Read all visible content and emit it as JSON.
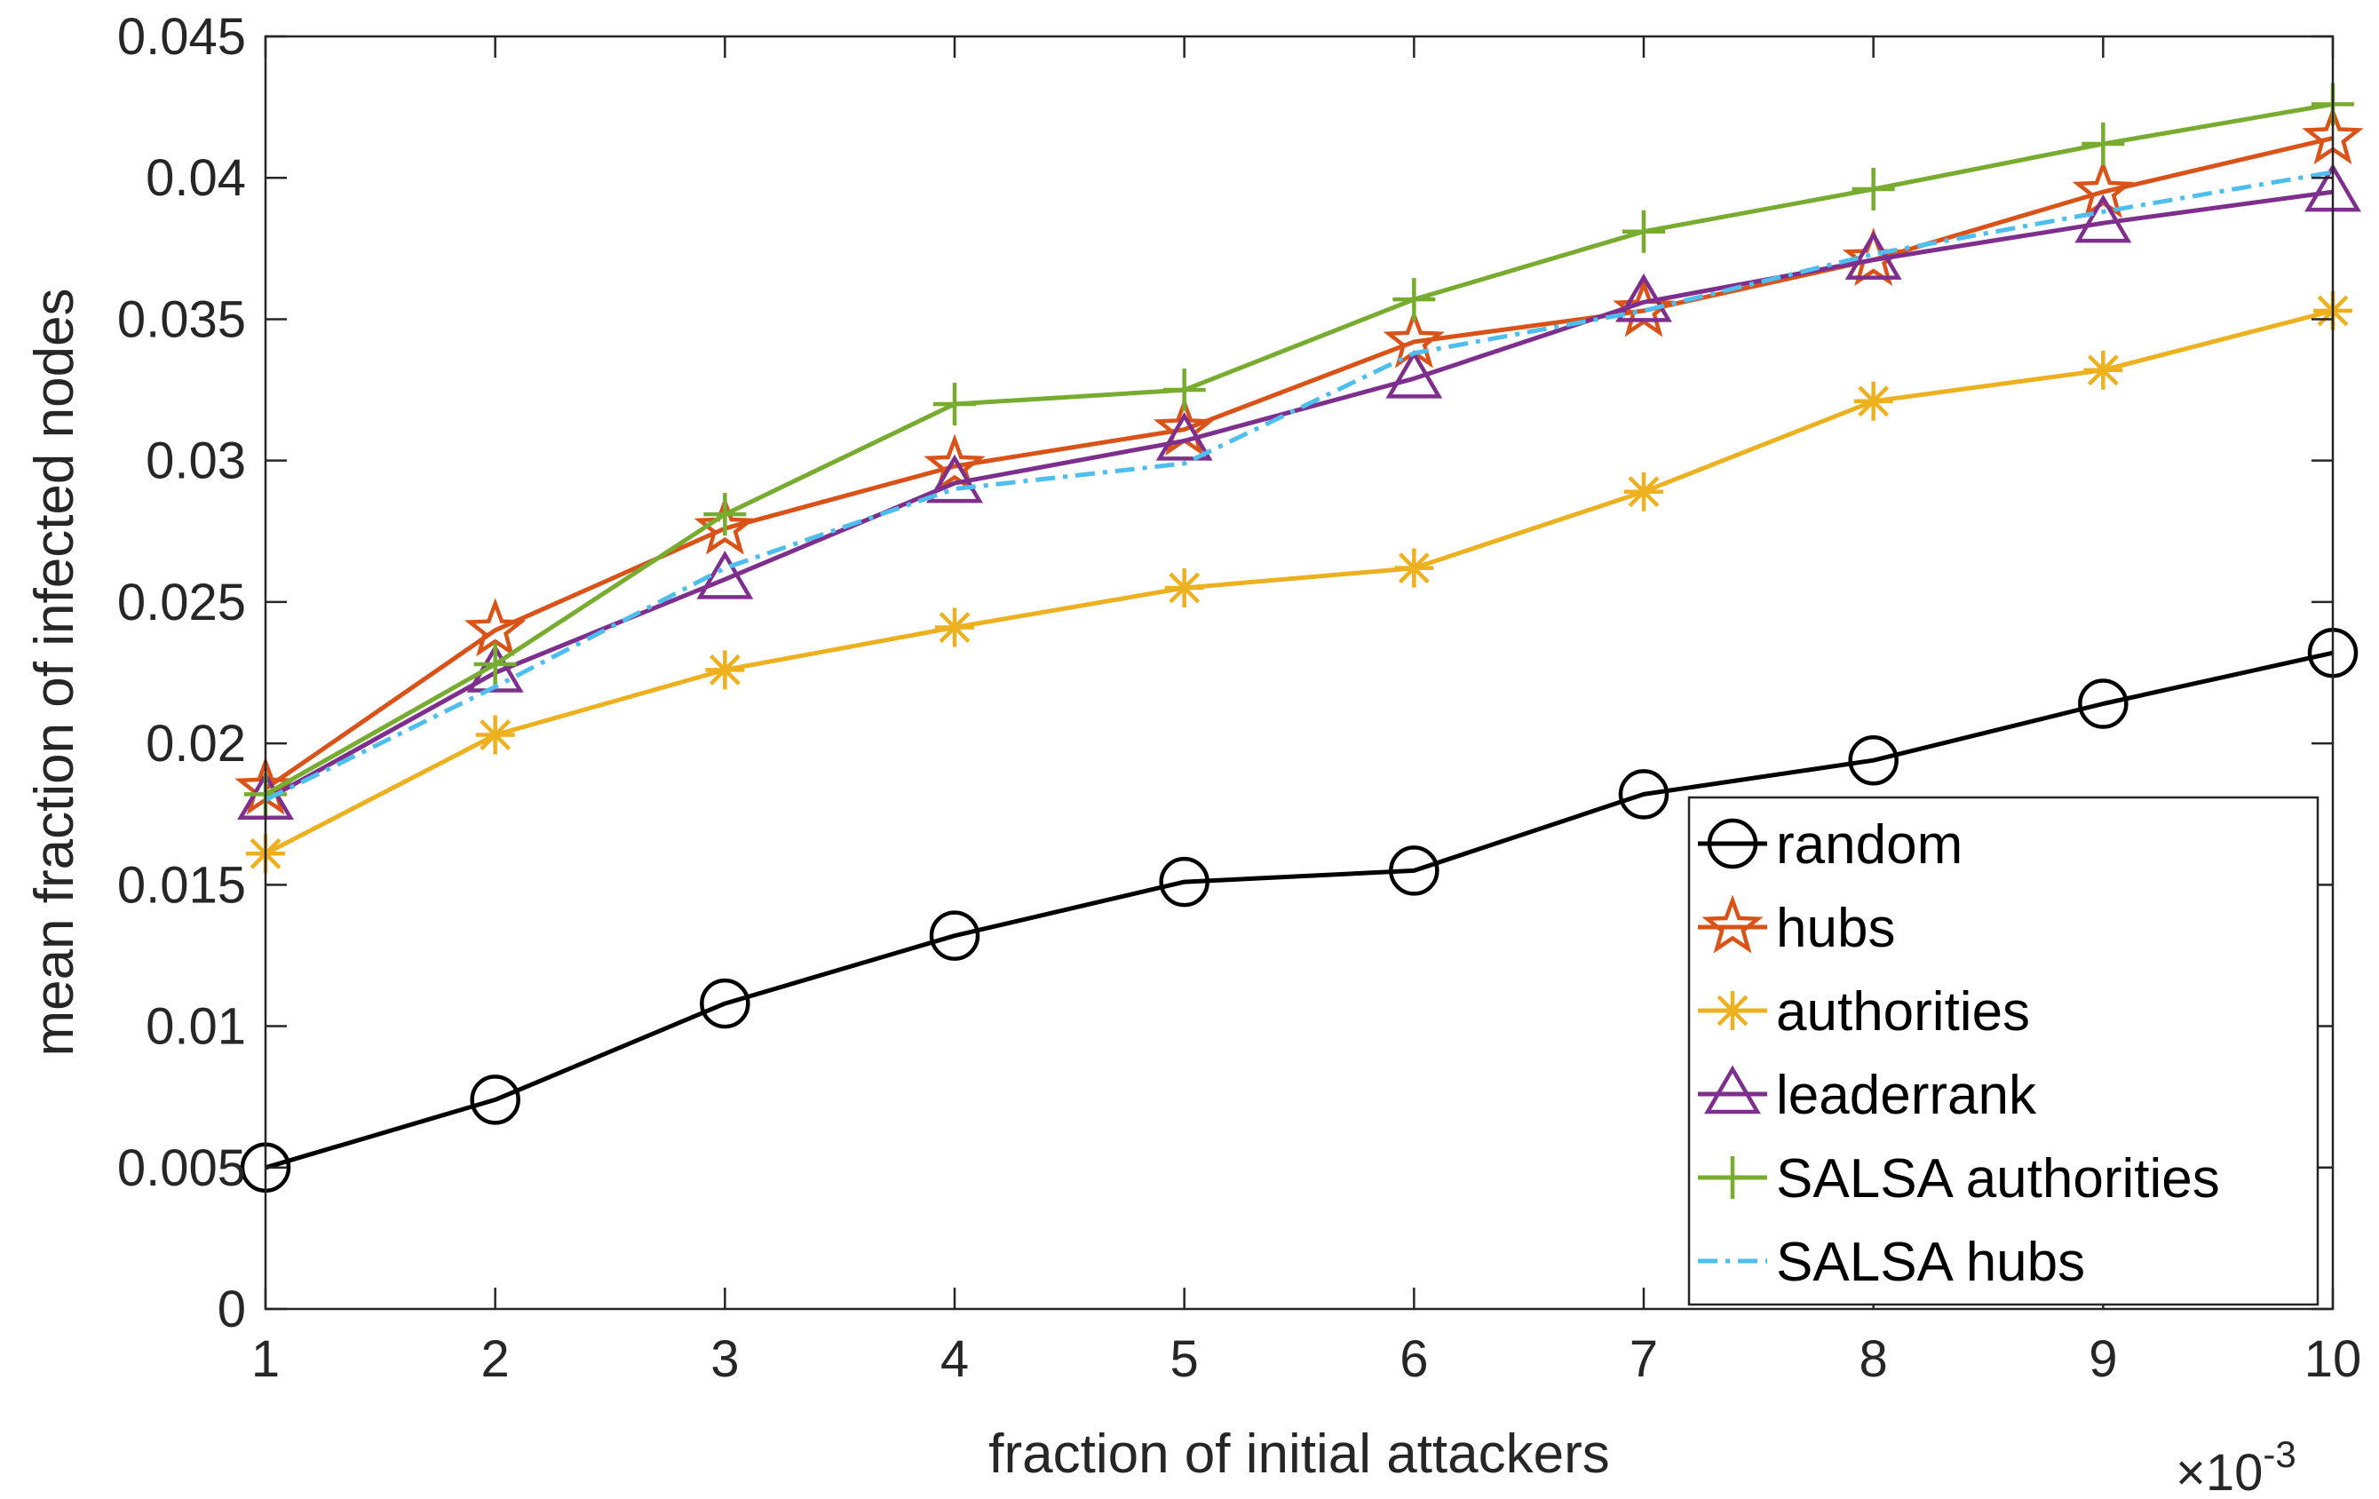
{
  "chart_data": {
    "type": "line",
    "title": "",
    "xlabel": "fraction of initial attackers",
    "ylabel": "mean fraction of infected nodes",
    "x_multiplier_label": "×10",
    "x_multiplier_exponent": "-3",
    "x": [
      1,
      2,
      3,
      4,
      5,
      6,
      7,
      8,
      9,
      10
    ],
    "xlim": [
      1,
      10
    ],
    "ylim": [
      0,
      0.045
    ],
    "x_ticks": [
      "1",
      "2",
      "3",
      "4",
      "5",
      "6",
      "7",
      "8",
      "9",
      "10"
    ],
    "y_ticks": [
      {
        "value": 0,
        "label": "0"
      },
      {
        "value": 0.005,
        "label": "0.005"
      },
      {
        "value": 0.01,
        "label": "0.01"
      },
      {
        "value": 0.015,
        "label": "0.015"
      },
      {
        "value": 0.02,
        "label": "0.02"
      },
      {
        "value": 0.025,
        "label": "0.025"
      },
      {
        "value": 0.03,
        "label": "0.03"
      },
      {
        "value": 0.035,
        "label": "0.035"
      },
      {
        "value": 0.04,
        "label": "0.04"
      },
      {
        "value": 0.045,
        "label": "0.045"
      }
    ],
    "grid": false,
    "legend_position": "bottom-right",
    "series": [
      {
        "name": "random",
        "color": "#000000",
        "marker": "circle",
        "dash": "solid",
        "values": [
          0.005,
          0.0074,
          0.0108,
          0.0132,
          0.0151,
          0.0155,
          0.0182,
          0.0194,
          0.0214,
          0.0232
        ]
      },
      {
        "name": "hubs",
        "color": "#D95319",
        "marker": "star",
        "dash": "solid",
        "values": [
          0.0184,
          0.024,
          0.0276,
          0.0298,
          0.0311,
          0.0342,
          0.0353,
          0.0371,
          0.0395,
          0.0414
        ]
      },
      {
        "name": "authorities",
        "color": "#EDB120",
        "marker": "asterisk",
        "dash": "solid",
        "values": [
          0.0161,
          0.0203,
          0.0226,
          0.0241,
          0.0255,
          0.0262,
          0.0289,
          0.0321,
          0.0332,
          0.0353
        ]
      },
      {
        "name": "leaderrank",
        "color": "#7E2F8E",
        "marker": "triangle",
        "dash": "solid",
        "values": [
          0.018,
          0.0225,
          0.0258,
          0.0292,
          0.0307,
          0.0329,
          0.0356,
          0.0371,
          0.0384,
          0.0395
        ]
      },
      {
        "name": "SALSA authorities",
        "color": "#77AC30",
        "marker": "plus",
        "dash": "solid",
        "values": [
          0.0182,
          0.0228,
          0.0281,
          0.032,
          0.0325,
          0.0357,
          0.0381,
          0.0396,
          0.0412,
          0.0426
        ]
      },
      {
        "name": "SALSA hubs",
        "color": "#4DBEEE",
        "marker": "none",
        "dash": "dashdot",
        "values": [
          0.018,
          0.022,
          0.0262,
          0.029,
          0.0299,
          0.0338,
          0.0353,
          0.0373,
          0.0388,
          0.0402
        ]
      }
    ]
  }
}
